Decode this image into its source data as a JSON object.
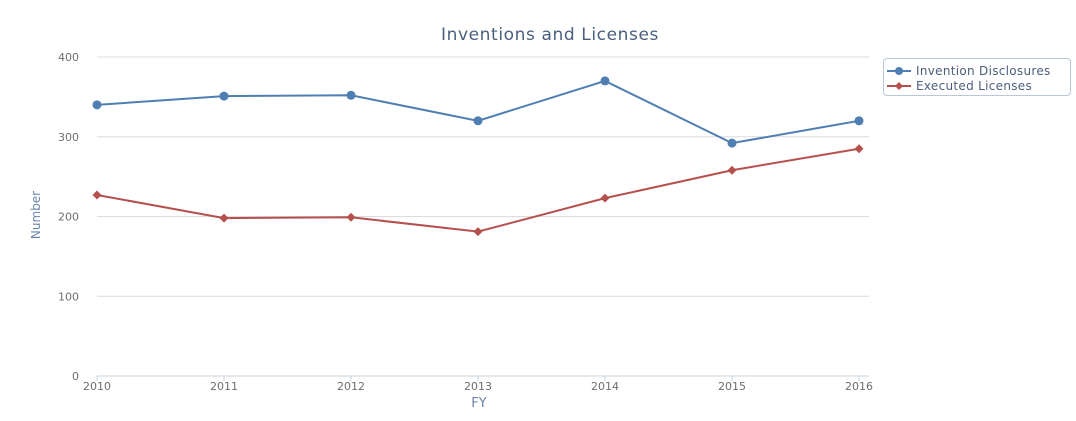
{
  "chart_data": {
    "type": "line",
    "title": "Inventions and Licenses",
    "xlabel": "FY",
    "ylabel": "Number",
    "categories": [
      "2010",
      "2011",
      "2012",
      "2013",
      "2014",
      "2015",
      "2016"
    ],
    "ylim": [
      0,
      400
    ],
    "yticks": [
      0,
      100,
      200,
      300,
      400
    ],
    "grid": true,
    "legend_position": "top-right",
    "series": [
      {
        "name": "Invention Disclosures",
        "color": "#4f7eb3",
        "marker": "circle",
        "values": [
          340,
          351,
          352,
          320,
          370,
          292,
          320
        ]
      },
      {
        "name": "Executed Licenses",
        "color": "#b5504e",
        "marker": "diamond",
        "values": [
          227,
          198,
          199,
          181,
          223,
          258,
          285
        ]
      }
    ]
  }
}
